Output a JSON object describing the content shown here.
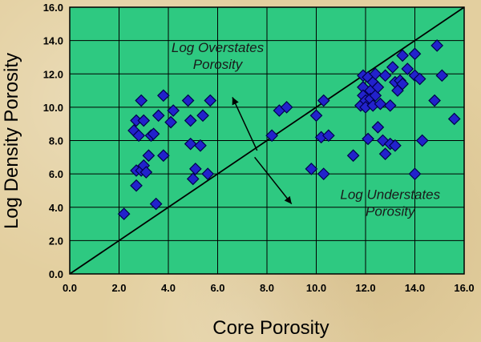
{
  "chart_data": {
    "type": "scatter",
    "xlabel": "Core Porosity",
    "ylabel": "Log Density Porosity",
    "xlim": [
      0,
      16
    ],
    "ylim": [
      0,
      16
    ],
    "xticks": [
      "0.0",
      "2.0",
      "4.0",
      "6.0",
      "8.0",
      "10.0",
      "12.0",
      "14.0",
      "16.0"
    ],
    "yticks": [
      "0.0",
      "2.0",
      "4.0",
      "6.0",
      "8.0",
      "10.0",
      "12.0",
      "14.0",
      "16.0"
    ],
    "grid": true,
    "reference_line": {
      "from": [
        0,
        0
      ],
      "to": [
        16,
        16
      ]
    },
    "annotations": [
      {
        "lines": [
          "Log Overstates",
          "Porosity"
        ],
        "at": [
          6.0,
          13.3
        ]
      },
      {
        "lines": [
          "Log Understates",
          "Porosity"
        ],
        "at": [
          13.0,
          4.5
        ]
      }
    ],
    "arrows": [
      {
        "from": [
          7.6,
          7.4
        ],
        "to": [
          6.6,
          10.6
        ]
      },
      {
        "from": [
          7.5,
          7.0
        ],
        "to": [
          9.0,
          4.2
        ]
      }
    ],
    "colors": {
      "plot_bg": "#2ec981",
      "marker": "#2222cc",
      "marker_edge": "#00004d",
      "line": "#000000"
    },
    "series": [
      {
        "marker": "diamond",
        "points": [
          [
            2.2,
            3.6
          ],
          [
            2.7,
            5.3
          ],
          [
            2.7,
            6.2
          ],
          [
            2.6,
            8.6
          ],
          [
            2.7,
            9.2
          ],
          [
            2.8,
            8.3
          ],
          [
            2.9,
            10.4
          ],
          [
            3.0,
            9.2
          ],
          [
            2.9,
            6.2
          ],
          [
            3.0,
            6.5
          ],
          [
            3.1,
            6.1
          ],
          [
            3.2,
            7.1
          ],
          [
            3.3,
            8.3
          ],
          [
            3.4,
            8.4
          ],
          [
            3.5,
            4.2
          ],
          [
            3.6,
            9.5
          ],
          [
            3.8,
            7.1
          ],
          [
            3.8,
            10.7
          ],
          [
            4.1,
            9.1
          ],
          [
            4.2,
            9.8
          ],
          [
            4.8,
            10.4
          ],
          [
            4.9,
            9.2
          ],
          [
            4.9,
            7.8
          ],
          [
            5.0,
            5.7
          ],
          [
            5.1,
            6.3
          ],
          [
            5.3,
            7.7
          ],
          [
            5.4,
            9.5
          ],
          [
            5.6,
            6.0
          ],
          [
            5.7,
            10.4
          ],
          [
            8.2,
            8.3
          ],
          [
            8.5,
            9.8
          ],
          [
            8.8,
            10.0
          ],
          [
            9.8,
            6.3
          ],
          [
            10.0,
            9.5
          ],
          [
            10.2,
            8.2
          ],
          [
            10.3,
            6.0
          ],
          [
            10.3,
            10.4
          ],
          [
            10.5,
            8.3
          ],
          [
            11.5,
            7.1
          ],
          [
            11.8,
            10.1
          ],
          [
            11.9,
            11.9
          ],
          [
            11.9,
            11.2
          ],
          [
            11.9,
            10.7
          ],
          [
            12.0,
            10.4
          ],
          [
            12.0,
            10.0
          ],
          [
            12.1,
            11.8
          ],
          [
            12.1,
            8.1
          ],
          [
            12.2,
            11.0
          ],
          [
            12.2,
            10.5
          ],
          [
            12.3,
            10.1
          ],
          [
            12.3,
            11.5
          ],
          [
            12.4,
            12.0
          ],
          [
            12.4,
            10.7
          ],
          [
            12.5,
            8.8
          ],
          [
            12.5,
            11.2
          ],
          [
            12.6,
            10.2
          ],
          [
            12.7,
            8.0
          ],
          [
            12.8,
            7.2
          ],
          [
            12.8,
            11.9
          ],
          [
            13.0,
            7.8
          ],
          [
            13.0,
            10.1
          ],
          [
            13.1,
            12.4
          ],
          [
            13.2,
            7.7
          ],
          [
            13.2,
            11.5
          ],
          [
            13.3,
            11.0
          ],
          [
            13.4,
            11.6
          ],
          [
            13.5,
            13.1
          ],
          [
            13.5,
            11.4
          ],
          [
            13.7,
            12.3
          ],
          [
            14.0,
            13.2
          ],
          [
            14.0,
            11.9
          ],
          [
            14.0,
            6.0
          ],
          [
            14.2,
            11.7
          ],
          [
            14.3,
            8.0
          ],
          [
            14.8,
            10.4
          ],
          [
            14.9,
            13.7
          ],
          [
            15.1,
            11.9
          ],
          [
            15.6,
            9.3
          ]
        ]
      }
    ]
  }
}
